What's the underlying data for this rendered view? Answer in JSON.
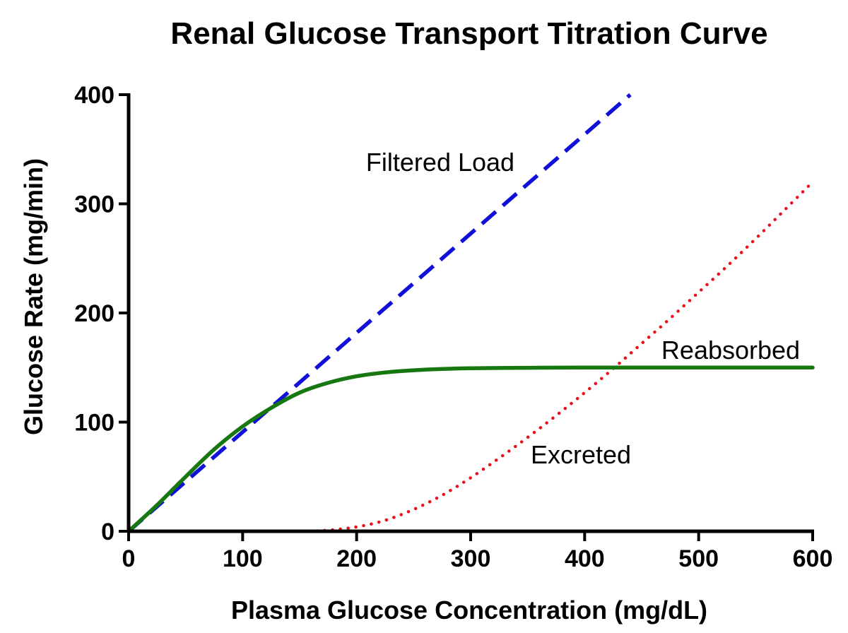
{
  "chart_data": {
    "type": "line",
    "title": "Renal Glucose Transport Titration Curve",
    "xlabel": "Plasma Glucose Concentration (mg/dL)",
    "ylabel": "Glucose Rate (mg/min)",
    "xlim": [
      0,
      600
    ],
    "ylim": [
      0,
      400
    ],
    "xticks": [
      0,
      100,
      200,
      300,
      400,
      500,
      600
    ],
    "yticks": [
      0,
      100,
      200,
      300,
      400
    ],
    "grid": false,
    "series": [
      {
        "name": "Filtered Load",
        "label": "Filtered Load",
        "color": "#1010d8",
        "style": "dashed",
        "x": [
          0,
          440
        ],
        "y": [
          0,
          400
        ]
      },
      {
        "name": "Reabsorbed",
        "label": "Reabsorbed",
        "color": "#16780f",
        "style": "solid",
        "x": [
          0,
          25,
          50,
          75,
          100,
          125,
          150,
          175,
          200,
          225,
          250,
          275,
          300,
          350,
          400,
          450,
          500,
          550,
          600
        ],
        "y": [
          0,
          24,
          50,
          75,
          96,
          113,
          127,
          136,
          142,
          145.5,
          147.5,
          148.7,
          149.3,
          149.8,
          150,
          150,
          150,
          150,
          150
        ]
      },
      {
        "name": "Excreted",
        "label": "Excreted",
        "color": "#e8101a",
        "style": "dotted",
        "x": [
          0,
          50,
          100,
          150,
          175,
          200,
          225,
          250,
          275,
          300,
          325,
          350,
          375,
          400,
          425,
          450,
          475,
          500,
          525,
          550,
          575,
          600
        ],
        "y": [
          0,
          0,
          0,
          0,
          1,
          4,
          10,
          20,
          33,
          49,
          67,
          86,
          106,
          127,
          149,
          172,
          195,
          219,
          243,
          268,
          294,
          320
        ]
      }
    ]
  }
}
